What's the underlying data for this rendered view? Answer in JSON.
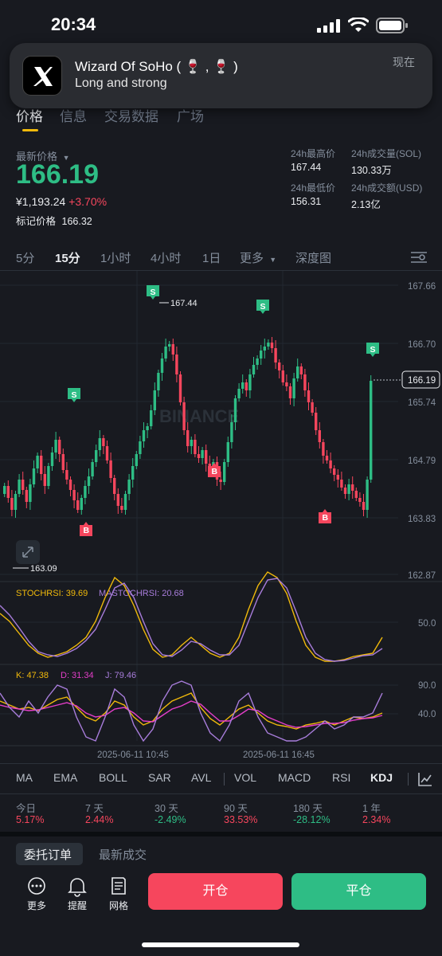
{
  "status_bar": {
    "time": "20:34"
  },
  "notification": {
    "app_icon": "x-logo-icon",
    "title": "Wizard Of SoHo ( 🍷 , 🍷 )",
    "body": "Long and strong",
    "when": "现在"
  },
  "tabs": [
    {
      "label": "价格",
      "active": true
    },
    {
      "label": "信息"
    },
    {
      "label": "交易数据"
    },
    {
      "label": "广场"
    }
  ],
  "price": {
    "label": "最新价格",
    "value": "166.19",
    "fiat": "¥1,193.24",
    "change": "+3.70%",
    "mark_label": "标记价格",
    "mark_value": "166.32"
  },
  "stats": {
    "high_label": "24h最高价",
    "high_value": "167.44",
    "low_label": "24h最低价",
    "low_value": "156.31",
    "vol_label": "24h成交量(SOL)",
    "vol_value": "130.33万",
    "amt_label": "24h成交额(USD)",
    "amt_value": "2.13亿"
  },
  "intervals": [
    "5分",
    "15分",
    "1小时",
    "4小时",
    "1日",
    "更多",
    "深度图"
  ],
  "active_interval": "15分",
  "chart_data": {
    "type": "candlestick",
    "price_axis": [
      "167.66",
      "166.70",
      "165.74",
      "164.79",
      "163.83",
      "162.87"
    ],
    "last_price": "166.19",
    "max_label": "167.44",
    "min_label": "163.09",
    "watermark": "BINANCE",
    "signals": [
      {
        "type": "S",
        "label": "S"
      },
      {
        "type": "S",
        "label": "S"
      },
      {
        "type": "S",
        "label": "S"
      },
      {
        "type": "S",
        "label": "S"
      },
      {
        "type": "B",
        "label": "B"
      },
      {
        "type": "B",
        "label": "B"
      },
      {
        "type": "B",
        "label": "B"
      }
    ],
    "stochrsi_label": "STOCHRSI: 39.69",
    "mastochrsi_label": "MASTOCHRSI: 20.68",
    "stoch_axis": "50.0",
    "kdj_k": "K: 47.38",
    "kdj_d": "D: 31.34",
    "kdj_j": "J: 79.46",
    "kdj_axis": [
      "90.0",
      "40.0"
    ],
    "time_labels": [
      "2025-06-11 10:45",
      "2025-06-11 16:45"
    ]
  },
  "indicators": [
    "MA",
    "EMA",
    "BOLL",
    "SAR",
    "AVL",
    "VOL",
    "MACD",
    "RSI",
    "KDJ"
  ],
  "active_indicator": "KDJ",
  "performance": [
    {
      "label": "今日",
      "value": "5.17%",
      "dir": "up"
    },
    {
      "label": "7 天",
      "value": "2.44%",
      "dir": "up"
    },
    {
      "label": "30 天",
      "value": "-2.49%",
      "dir": "down"
    },
    {
      "label": "90 天",
      "value": "33.53%",
      "dir": "up"
    },
    {
      "label": "180 天",
      "value": "-28.12%",
      "dir": "down"
    },
    {
      "label": "1 年",
      "value": "2.34%",
      "dir": "up"
    }
  ],
  "sub_tabs": [
    {
      "label": "委托订单",
      "active": true
    },
    {
      "label": "最新成交"
    }
  ],
  "bottom_nav": [
    {
      "label": "更多",
      "icon": "more-dots-icon"
    },
    {
      "label": "提醒",
      "icon": "bell-icon"
    },
    {
      "label": "网格",
      "icon": "grid-doc-icon"
    }
  ],
  "actions": {
    "open": "开仓",
    "close": "平仓"
  },
  "colors": {
    "up": "#2ebd85",
    "down": "#f6465d",
    "accent": "#f0b90b",
    "bg": "#181a20"
  }
}
